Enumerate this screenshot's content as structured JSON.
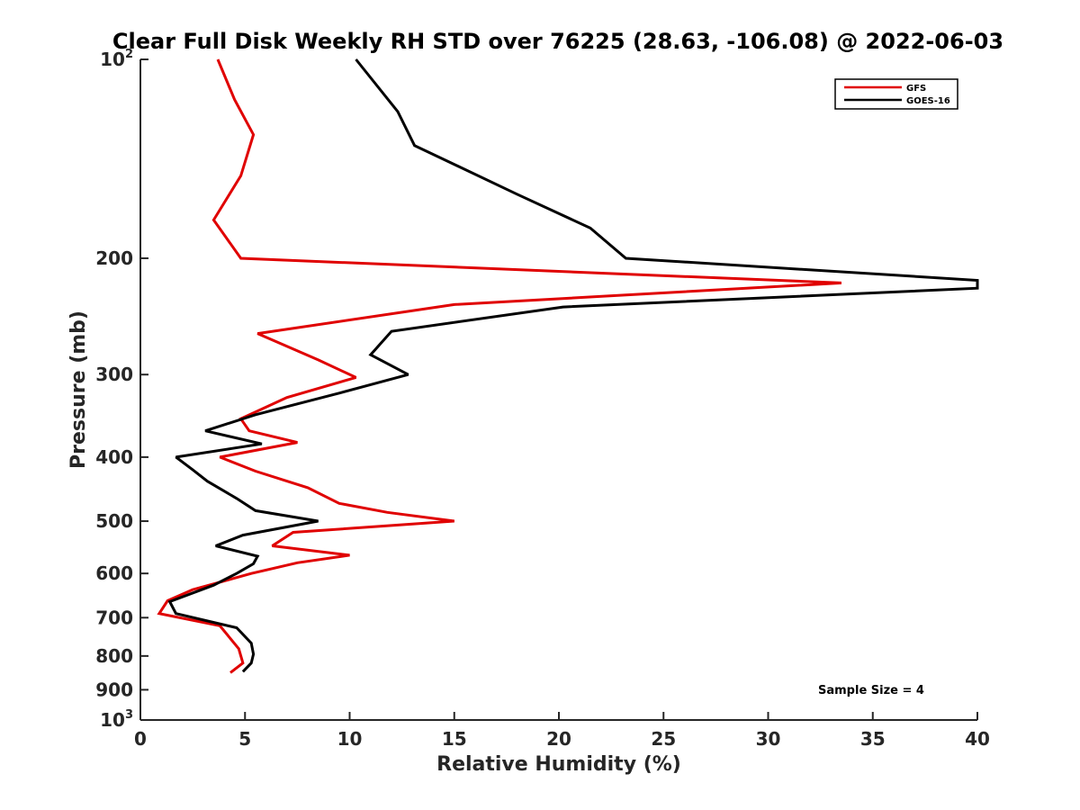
{
  "chart_data": {
    "type": "line",
    "title": "Clear Full Disk Weekly RH STD over 76225 (28.63, -106.08) @ 2022-06-03",
    "xlabel": "Relative Humidity (%)",
    "ylabel": "Pressure (mb)",
    "xlim": [
      0,
      40
    ],
    "ylim": [
      100,
      1000
    ],
    "y_scale": "log",
    "y_reversed": true,
    "grid": false,
    "legend_position": "top-right",
    "x_ticks": [
      0,
      5,
      10,
      15,
      20,
      25,
      30,
      35,
      40
    ],
    "x_tick_labels": [
      "0",
      "5",
      "10",
      "15",
      "20",
      "25",
      "30",
      "35",
      "40"
    ],
    "y_ticks": [
      {
        "value": 100,
        "base": "10",
        "exp": "2"
      },
      {
        "value": 200,
        "label": "200"
      },
      {
        "value": 300,
        "label": "300"
      },
      {
        "value": 400,
        "label": "400"
      },
      {
        "value": 500,
        "label": "500"
      },
      {
        "value": 600,
        "label": "600"
      },
      {
        "value": 700,
        "label": "700"
      },
      {
        "value": 800,
        "label": "800"
      },
      {
        "value": 900,
        "label": "900"
      },
      {
        "value": 1000,
        "base": "10",
        "exp": "3"
      }
    ],
    "annotation": "Sample Size = 4",
    "series": [
      {
        "name": "GFS",
        "color": "#e00000",
        "points": [
          [
            3.7,
            100
          ],
          [
            4.5,
            115
          ],
          [
            5.4,
            130
          ],
          [
            4.8,
            150
          ],
          [
            3.5,
            175
          ],
          [
            4.8,
            200
          ],
          [
            33.5,
            218
          ],
          [
            15.0,
            235
          ],
          [
            5.6,
            260
          ],
          [
            8.5,
            285
          ],
          [
            10.3,
            303
          ],
          [
            7.0,
            325
          ],
          [
            4.8,
            350
          ],
          [
            5.2,
            365
          ],
          [
            7.5,
            380
          ],
          [
            3.8,
            400
          ],
          [
            5.5,
            420
          ],
          [
            8.0,
            445
          ],
          [
            9.5,
            470
          ],
          [
            11.8,
            485
          ],
          [
            15.0,
            500
          ],
          [
            7.3,
            520
          ],
          [
            6.3,
            545
          ],
          [
            10.0,
            563
          ],
          [
            7.5,
            578
          ],
          [
            5.3,
            600
          ],
          [
            2.5,
            635
          ],
          [
            1.3,
            660
          ],
          [
            0.9,
            690
          ],
          [
            3.8,
            720
          ],
          [
            4.7,
            780
          ],
          [
            4.9,
            820
          ],
          [
            4.3,
            848
          ]
        ]
      },
      {
        "name": "GOES-16",
        "color": "#000000",
        "points": [
          [
            10.3,
            100
          ],
          [
            12.3,
            120
          ],
          [
            13.1,
            135
          ],
          [
            18.0,
            160
          ],
          [
            21.5,
            180
          ],
          [
            23.2,
            200
          ],
          [
            40.0,
            216
          ],
          [
            40.0,
            222
          ],
          [
            20.2,
            237
          ],
          [
            12.0,
            258
          ],
          [
            11.0,
            280
          ],
          [
            12.8,
            300
          ],
          [
            9.5,
            320
          ],
          [
            5.5,
            345
          ],
          [
            3.1,
            365
          ],
          [
            5.8,
            382
          ],
          [
            1.7,
            400
          ],
          [
            2.5,
            418
          ],
          [
            3.2,
            435
          ],
          [
            4.6,
            462
          ],
          [
            5.5,
            482
          ],
          [
            8.5,
            500
          ],
          [
            4.9,
            525
          ],
          [
            3.6,
            545
          ],
          [
            5.6,
            565
          ],
          [
            5.4,
            580
          ],
          [
            4.6,
            600
          ],
          [
            3.5,
            625
          ],
          [
            1.4,
            662
          ],
          [
            1.7,
            690
          ],
          [
            4.6,
            725
          ],
          [
            5.3,
            765
          ],
          [
            5.4,
            795
          ],
          [
            5.3,
            820
          ],
          [
            4.9,
            845
          ]
        ]
      }
    ]
  }
}
